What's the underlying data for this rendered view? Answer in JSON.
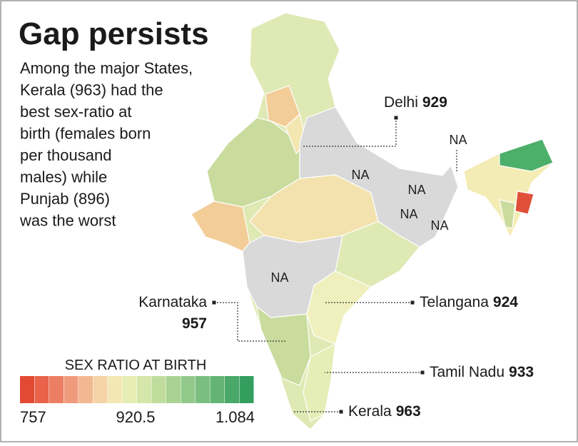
{
  "title": "Gap persists",
  "description_lines": [
    "Among the major States,",
    "Kerala (963) had the",
    "best sex-ratio at",
    "birth (females born",
    "per thousand",
    "males) while",
    "Punjab (896)",
    "was the worst"
  ],
  "callouts": [
    {
      "name": "Delhi",
      "value": 929
    },
    {
      "name": "Karnataka",
      "value": 957
    },
    {
      "name": "Telangana",
      "value": 924
    },
    {
      "name": "Tamil Nadu",
      "value": 933
    },
    {
      "name": "Kerala",
      "value": 963
    }
  ],
  "na_labels": [
    "NA",
    "NA",
    "NA",
    "NA",
    "NA",
    "NA"
  ],
  "legend": {
    "title": "SEX RATIO AT BIRTH",
    "labels": [
      "757",
      "920.5",
      "1.084"
    ]
  }
}
